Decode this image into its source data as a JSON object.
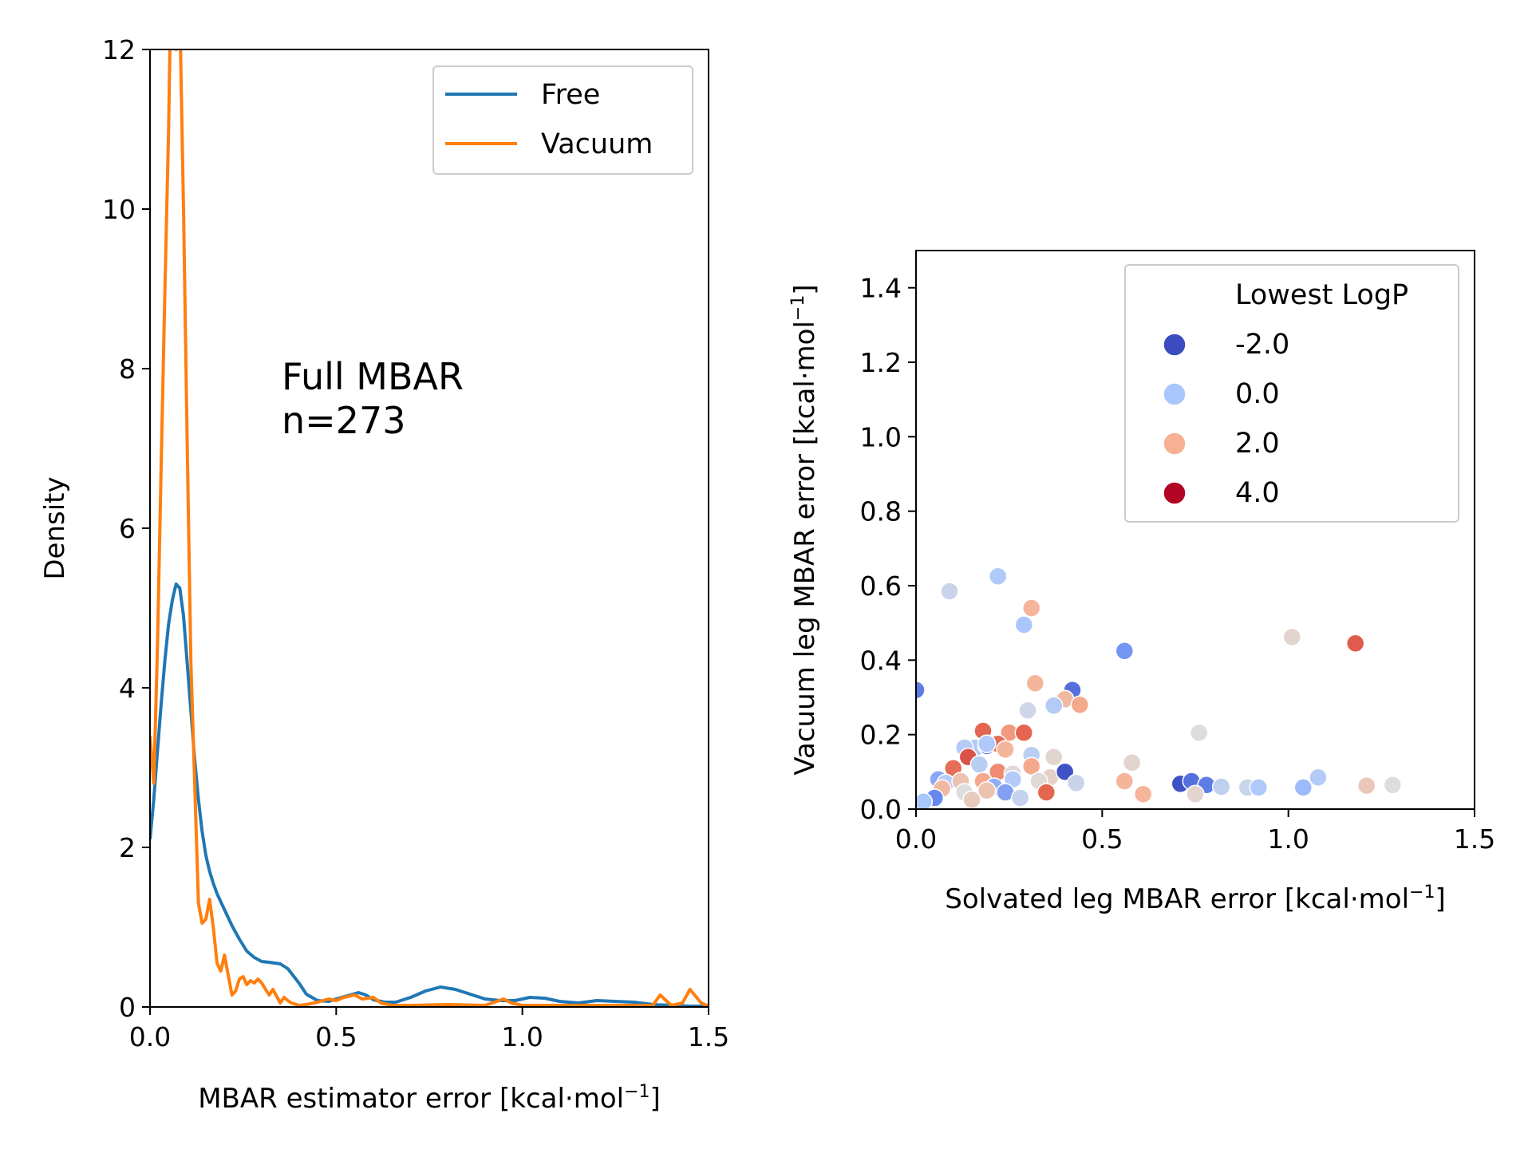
{
  "chart_data": [
    {
      "type": "line",
      "title": "",
      "xlabel": "MBAR estimator error [kcal·mol",
      "xlabel_sup": "−1",
      "xlabel_end": "]",
      "ylabel": "Density",
      "xlim": [
        0.0,
        1.5
      ],
      "ylim": [
        0,
        12
      ],
      "xticks": [
        "0.0",
        "0.5",
        "1.0",
        "1.5"
      ],
      "yticks": [
        "0",
        "2",
        "4",
        "6",
        "8",
        "10",
        "12"
      ],
      "grid": false,
      "legend_placement": "top-right",
      "annotation": [
        "Full MBAR",
        "n=273"
      ],
      "series": [
        {
          "name": "Free",
          "color": "#1f77b4",
          "x": [
            0.0,
            0.01,
            0.02,
            0.03,
            0.04,
            0.05,
            0.06,
            0.07,
            0.08,
            0.09,
            0.1,
            0.11,
            0.12,
            0.13,
            0.14,
            0.15,
            0.16,
            0.17,
            0.18,
            0.2,
            0.22,
            0.24,
            0.26,
            0.28,
            0.3,
            0.32,
            0.35,
            0.37,
            0.4,
            0.42,
            0.45,
            0.48,
            0.5,
            0.53,
            0.56,
            0.58,
            0.6,
            0.63,
            0.66,
            0.7,
            0.74,
            0.78,
            0.82,
            0.86,
            0.9,
            0.94,
            0.98,
            1.02,
            1.06,
            1.1,
            1.15,
            1.2,
            1.25,
            1.3,
            1.35,
            1.4,
            1.45,
            1.5
          ],
          "y": [
            2.1,
            2.6,
            3.2,
            3.8,
            4.35,
            4.8,
            5.1,
            5.3,
            5.25,
            4.9,
            4.3,
            3.7,
            3.1,
            2.6,
            2.2,
            1.9,
            1.7,
            1.55,
            1.42,
            1.22,
            1.02,
            0.85,
            0.7,
            0.62,
            0.57,
            0.56,
            0.54,
            0.48,
            0.3,
            0.16,
            0.08,
            0.07,
            0.1,
            0.14,
            0.18,
            0.15,
            0.09,
            0.06,
            0.06,
            0.12,
            0.2,
            0.25,
            0.22,
            0.16,
            0.1,
            0.08,
            0.08,
            0.12,
            0.11,
            0.07,
            0.05,
            0.08,
            0.07,
            0.06,
            0.03,
            0.02,
            0.01,
            0.01
          ]
        },
        {
          "name": "Vacuum",
          "color": "#ff7f0e",
          "x": [
            0.0,
            0.01,
            0.02,
            0.03,
            0.04,
            0.05,
            0.055,
            0.06,
            0.065,
            0.07,
            0.075,
            0.08,
            0.09,
            0.1,
            0.11,
            0.12,
            0.13,
            0.14,
            0.15,
            0.16,
            0.17,
            0.18,
            0.19,
            0.2,
            0.21,
            0.22,
            0.23,
            0.24,
            0.25,
            0.26,
            0.27,
            0.28,
            0.29,
            0.3,
            0.32,
            0.33,
            0.35,
            0.36,
            0.37,
            0.38,
            0.4,
            0.42,
            0.45,
            0.48,
            0.5,
            0.52,
            0.55,
            0.57,
            0.6,
            0.62,
            0.65,
            0.7,
            0.8,
            0.9,
            0.95,
            0.97,
            1.0,
            1.1,
            1.2,
            1.3,
            1.35,
            1.37,
            1.4,
            1.43,
            1.45,
            1.48,
            1.5
          ],
          "y": [
            3.4,
            2.8,
            4.5,
            6.8,
            9.0,
            11.0,
            12.5,
            12.8,
            12.5,
            12.0,
            12.8,
            12.5,
            10.0,
            7.0,
            4.3,
            2.8,
            1.3,
            1.05,
            1.1,
            1.35,
            1.0,
            0.55,
            0.45,
            0.65,
            0.4,
            0.15,
            0.2,
            0.35,
            0.38,
            0.28,
            0.33,
            0.3,
            0.35,
            0.3,
            0.15,
            0.22,
            0.05,
            0.12,
            0.08,
            0.05,
            0.02,
            0.03,
            0.06,
            0.1,
            0.08,
            0.12,
            0.15,
            0.1,
            0.12,
            0.05,
            0.02,
            0.02,
            0.03,
            0.02,
            0.1,
            0.05,
            0.02,
            0.02,
            0.02,
            0.02,
            0.02,
            0.15,
            0.02,
            0.05,
            0.22,
            0.05,
            0.01
          ]
        }
      ]
    },
    {
      "type": "scatter",
      "title": "",
      "xlabel": "Solvated leg MBAR error [kcal·mol",
      "xlabel_sup": "−1",
      "xlabel_end": "]",
      "ylabel": "Vacuum leg MBAR error [kcal·mol",
      "ylabel_sup": "−1",
      "ylabel_end": "]",
      "xlim": [
        0.0,
        1.5
      ],
      "ylim": [
        0.0,
        1.5
      ],
      "xticks": [
        "0.0",
        "0.5",
        "1.0",
        "1.5"
      ],
      "yticks": [
        "0.0",
        "0.2",
        "0.4",
        "0.6",
        "0.8",
        "1.0",
        "1.2",
        "1.4"
      ],
      "grid": false,
      "colormap": "coolwarm",
      "hue_range": [
        -2.0,
        4.0
      ],
      "legend_placement": "top-right",
      "legend_title": "Lowest LogP",
      "legend_entries": [
        {
          "label": "-2.0",
          "color": "#3b4cc0"
        },
        {
          "label": "0.0",
          "color": "#aac7fd"
        },
        {
          "label": "2.0",
          "color": "#f7b093"
        },
        {
          "label": "4.0",
          "color": "#b40426"
        }
      ],
      "points": [
        {
          "x": 0.0,
          "y": 0.32,
          "logp": -1.2
        },
        {
          "x": 0.09,
          "y": 0.585,
          "logp": 0.6
        },
        {
          "x": 0.22,
          "y": 0.625,
          "logp": 0.1
        },
        {
          "x": 0.29,
          "y": 0.495,
          "logp": 0.0
        },
        {
          "x": 0.31,
          "y": 0.54,
          "logp": 1.9
        },
        {
          "x": 0.56,
          "y": 0.425,
          "logp": -0.8
        },
        {
          "x": 1.01,
          "y": 0.462,
          "logp": 1.2
        },
        {
          "x": 1.18,
          "y": 0.445,
          "logp": 3.1
        },
        {
          "x": 0.32,
          "y": 0.338,
          "logp": 1.9
        },
        {
          "x": 0.42,
          "y": 0.32,
          "logp": -1.4
        },
        {
          "x": 0.4,
          "y": 0.295,
          "logp": 1.8
        },
        {
          "x": 0.44,
          "y": 0.28,
          "logp": 2.1
        },
        {
          "x": 0.37,
          "y": 0.278,
          "logp": 0.2
        },
        {
          "x": 0.3,
          "y": 0.265,
          "logp": 0.7
        },
        {
          "x": 0.18,
          "y": 0.21,
          "logp": 3.0
        },
        {
          "x": 0.25,
          "y": 0.205,
          "logp": 2.3
        },
        {
          "x": 0.29,
          "y": 0.205,
          "logp": 3.0
        },
        {
          "x": 0.76,
          "y": 0.205,
          "logp": 1.0
        },
        {
          "x": 0.16,
          "y": 0.165,
          "logp": 0.2
        },
        {
          "x": 0.19,
          "y": 0.17,
          "logp": -1.6
        },
        {
          "x": 0.22,
          "y": 0.175,
          "logp": 2.9
        },
        {
          "x": 0.13,
          "y": 0.165,
          "logp": 0.2
        },
        {
          "x": 0.14,
          "y": 0.14,
          "logp": 3.2
        },
        {
          "x": 0.19,
          "y": 0.175,
          "logp": 0.0
        },
        {
          "x": 0.24,
          "y": 0.16,
          "logp": 1.9
        },
        {
          "x": 0.31,
          "y": 0.145,
          "logp": 0.3
        },
        {
          "x": 0.37,
          "y": 0.14,
          "logp": 1.2
        },
        {
          "x": 0.1,
          "y": 0.11,
          "logp": 2.9
        },
        {
          "x": 0.17,
          "y": 0.12,
          "logp": 0.3
        },
        {
          "x": 0.22,
          "y": 0.1,
          "logp": 2.5
        },
        {
          "x": 0.26,
          "y": 0.095,
          "logp": 1.1
        },
        {
          "x": 0.31,
          "y": 0.115,
          "logp": 2.1
        },
        {
          "x": 0.36,
          "y": 0.085,
          "logp": 1.3
        },
        {
          "x": 0.4,
          "y": 0.1,
          "logp": -1.9
        },
        {
          "x": 0.58,
          "y": 0.125,
          "logp": 1.2
        },
        {
          "x": 0.06,
          "y": 0.08,
          "logp": -0.5
        },
        {
          "x": 0.08,
          "y": 0.07,
          "logp": 0.2
        },
        {
          "x": 0.12,
          "y": 0.075,
          "logp": 1.6
        },
        {
          "x": 0.18,
          "y": 0.075,
          "logp": 2.1
        },
        {
          "x": 0.21,
          "y": 0.06,
          "logp": -0.4
        },
        {
          "x": 0.26,
          "y": 0.08,
          "logp": 0.2
        },
        {
          "x": 0.33,
          "y": 0.075,
          "logp": 1.1
        },
        {
          "x": 0.43,
          "y": 0.07,
          "logp": 0.6
        },
        {
          "x": 0.56,
          "y": 0.075,
          "logp": 1.9
        },
        {
          "x": 0.71,
          "y": 0.068,
          "logp": -1.9
        },
        {
          "x": 0.74,
          "y": 0.075,
          "logp": -1.4
        },
        {
          "x": 0.78,
          "y": 0.065,
          "logp": -1.2
        },
        {
          "x": 0.82,
          "y": 0.06,
          "logp": 0.4
        },
        {
          "x": 0.89,
          "y": 0.058,
          "logp": 0.6
        },
        {
          "x": 0.92,
          "y": 0.058,
          "logp": 0.1
        },
        {
          "x": 1.04,
          "y": 0.058,
          "logp": -0.2
        },
        {
          "x": 1.08,
          "y": 0.085,
          "logp": 0.2
        },
        {
          "x": 1.21,
          "y": 0.063,
          "logp": 1.5
        },
        {
          "x": 1.28,
          "y": 0.065,
          "logp": 1.0
        },
        {
          "x": 0.07,
          "y": 0.055,
          "logp": 1.8
        },
        {
          "x": 0.13,
          "y": 0.045,
          "logp": 1.0
        },
        {
          "x": 0.19,
          "y": 0.05,
          "logp": 1.6
        },
        {
          "x": 0.24,
          "y": 0.045,
          "logp": -0.6
        },
        {
          "x": 0.35,
          "y": 0.045,
          "logp": 3.0
        },
        {
          "x": 0.61,
          "y": 0.04,
          "logp": 1.9
        },
        {
          "x": 0.75,
          "y": 0.04,
          "logp": 1.2
        },
        {
          "x": 0.05,
          "y": 0.03,
          "logp": -1.0
        },
        {
          "x": 0.02,
          "y": 0.02,
          "logp": 0.0
        },
        {
          "x": 0.15,
          "y": 0.025,
          "logp": 1.4
        },
        {
          "x": 0.28,
          "y": 0.03,
          "logp": 0.5
        },
        {
          "x": 0.19,
          "y": 0.175,
          "logp": 0.1
        }
      ]
    }
  ]
}
